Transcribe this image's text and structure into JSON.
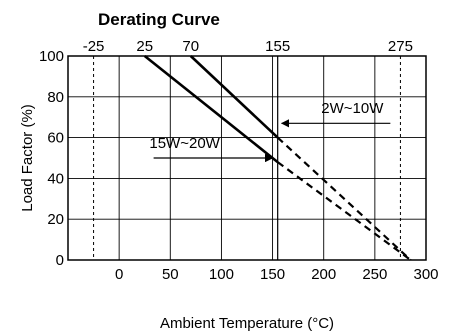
{
  "chart_data": {
    "type": "line",
    "title": "Derating Curve",
    "xlabel": "Ambient Temperature (°C)",
    "ylabel": "Load Factor (%)",
    "xlim": [
      -50,
      300
    ],
    "ylim": [
      0,
      100
    ],
    "x_ticks": [
      0,
      50,
      100,
      150,
      200,
      250,
      300
    ],
    "y_ticks": [
      0,
      20,
      40,
      60,
      80,
      100
    ],
    "top_markers": [
      -25,
      25,
      70,
      155,
      275
    ],
    "grid": true,
    "series": [
      {
        "name": "2W~10W",
        "solid": [
          [
            70,
            100
          ],
          [
            155,
            60
          ]
        ],
        "dashed": [
          [
            155,
            60
          ],
          [
            285,
            0
          ]
        ]
      },
      {
        "name": "15W~20W",
        "solid": [
          [
            25,
            100
          ],
          [
            155,
            48
          ]
        ],
        "dashed": [
          [
            155,
            48
          ],
          [
            285,
            0
          ]
        ]
      }
    ],
    "annotations": [
      {
        "text": "2W~10W",
        "points_to": [
          155,
          68
        ]
      },
      {
        "text": "15W~20W",
        "points_to": [
          150,
          50
        ]
      }
    ]
  }
}
